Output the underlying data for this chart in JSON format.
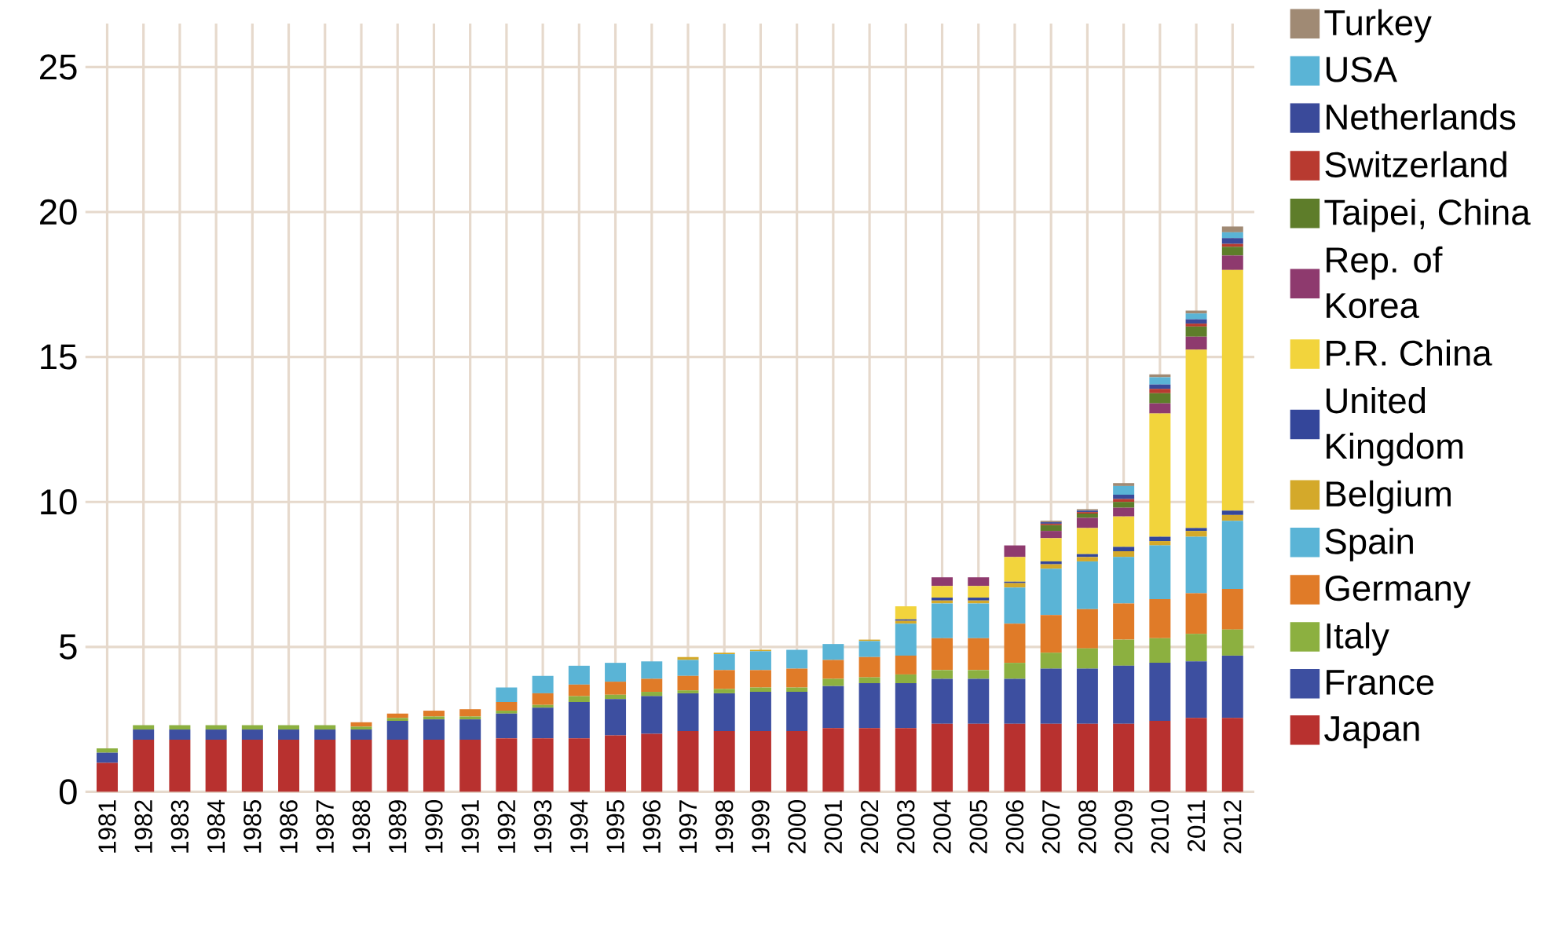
{
  "chart_data": {
    "type": "bar",
    "stacked": true,
    "categories": [
      "1981",
      "1982",
      "1983",
      "1984",
      "1985",
      "1986",
      "1987",
      "1988",
      "1989",
      "1990",
      "1991",
      "1992",
      "1993",
      "1994",
      "1995",
      "1996",
      "1997",
      "1998",
      "1999",
      "2000",
      "2001",
      "2002",
      "2003",
      "2004",
      "2005",
      "2006",
      "2007",
      "2008",
      "2009",
      "2010",
      "2011",
      "2012"
    ],
    "series": [
      {
        "name": "Japan",
        "color": "#b8312f",
        "values": [
          1.0,
          1.8,
          1.8,
          1.8,
          1.8,
          1.8,
          1.8,
          1.8,
          1.8,
          1.8,
          1.8,
          1.85,
          1.85,
          1.85,
          1.95,
          2.0,
          2.1,
          2.1,
          2.1,
          2.1,
          2.2,
          2.2,
          2.2,
          2.35,
          2.35,
          2.35,
          2.35,
          2.35,
          2.35,
          2.45,
          2.55,
          2.55
        ]
      },
      {
        "name": "France",
        "color": "#3d4fa0",
        "values": [
          0.35,
          0.35,
          0.35,
          0.35,
          0.35,
          0.35,
          0.35,
          0.35,
          0.65,
          0.7,
          0.7,
          0.85,
          1.05,
          1.25,
          1.25,
          1.3,
          1.3,
          1.3,
          1.35,
          1.35,
          1.45,
          1.55,
          1.55,
          1.55,
          1.55,
          1.55,
          1.9,
          1.9,
          2.0,
          2.0,
          1.95,
          2.15
        ]
      },
      {
        "name": "Italy",
        "color": "#8cb040",
        "values": [
          0.15,
          0.15,
          0.15,
          0.15,
          0.15,
          0.15,
          0.15,
          0.1,
          0.1,
          0.1,
          0.1,
          0.1,
          0.1,
          0.2,
          0.15,
          0.15,
          0.1,
          0.15,
          0.15,
          0.15,
          0.25,
          0.2,
          0.3,
          0.3,
          0.3,
          0.55,
          0.55,
          0.7,
          0.9,
          0.85,
          0.95,
          0.9
        ]
      },
      {
        "name": "Germany",
        "color": "#e07b28",
        "values": [
          0,
          0,
          0,
          0,
          0,
          0,
          0,
          0.15,
          0.15,
          0.2,
          0.25,
          0.3,
          0.4,
          0.4,
          0.45,
          0.45,
          0.5,
          0.65,
          0.6,
          0.65,
          0.65,
          0.7,
          0.65,
          1.1,
          1.1,
          1.35,
          1.3,
          1.35,
          1.25,
          1.35,
          1.4,
          1.4
        ]
      },
      {
        "name": "Spain",
        "color": "#5ab4d6",
        "values": [
          0,
          0,
          0,
          0,
          0,
          0,
          0,
          0,
          0,
          0,
          0,
          0.5,
          0.6,
          0.65,
          0.65,
          0.6,
          0.55,
          0.55,
          0.65,
          0.65,
          0.55,
          0.55,
          1.1,
          1.2,
          1.2,
          1.25,
          1.6,
          1.65,
          1.6,
          1.85,
          1.95,
          2.35
        ]
      },
      {
        "name": "Belgium",
        "color": "#d4a92a",
        "values": [
          0,
          0,
          0,
          0,
          0,
          0,
          0,
          0,
          0,
          0,
          0,
          0,
          0,
          0,
          0,
          0,
          0.1,
          0.05,
          0.05,
          0,
          0,
          0.05,
          0.1,
          0.1,
          0.1,
          0.15,
          0.15,
          0.15,
          0.2,
          0.15,
          0.2,
          0.2
        ]
      },
      {
        "name": "United Kingdom",
        "color": "#34469a",
        "values": [
          0,
          0,
          0,
          0,
          0,
          0,
          0,
          0,
          0,
          0,
          0,
          0,
          0,
          0,
          0,
          0,
          0,
          0,
          0,
          0,
          0,
          0,
          0.05,
          0.1,
          0.1,
          0.05,
          0.1,
          0.1,
          0.15,
          0.15,
          0.1,
          0.15
        ]
      },
      {
        "name": "P.R. China",
        "color": "#f2d43c",
        "values": [
          0,
          0,
          0,
          0,
          0,
          0,
          0,
          0,
          0,
          0,
          0,
          0,
          0,
          0,
          0,
          0,
          0,
          0,
          0,
          0,
          0,
          0,
          0.45,
          0.4,
          0.4,
          0.85,
          0.8,
          0.9,
          1.05,
          4.25,
          6.15,
          8.3
        ]
      },
      {
        "name": "Rep. of Korea",
        "color": "#8e3a6e",
        "values": [
          0,
          0,
          0,
          0,
          0,
          0,
          0,
          0,
          0,
          0,
          0,
          0,
          0,
          0,
          0,
          0,
          0,
          0,
          0,
          0,
          0,
          0,
          0,
          0.3,
          0.3,
          0.4,
          0.25,
          0.35,
          0.3,
          0.35,
          0.45,
          0.5
        ]
      },
      {
        "name": "Taipei, China",
        "color": "#5e7d2a",
        "values": [
          0,
          0,
          0,
          0,
          0,
          0,
          0,
          0,
          0,
          0,
          0,
          0,
          0,
          0,
          0,
          0,
          0,
          0,
          0,
          0,
          0,
          0,
          0,
          0,
          0,
          0,
          0.2,
          0.15,
          0.2,
          0.35,
          0.35,
          0.3
        ]
      },
      {
        "name": "Switzerland",
        "color": "#b83a30",
        "values": [
          0,
          0,
          0,
          0,
          0,
          0,
          0,
          0,
          0,
          0,
          0,
          0,
          0,
          0,
          0,
          0,
          0,
          0,
          0,
          0,
          0,
          0,
          0,
          0,
          0,
          0,
          0.05,
          0.05,
          0.1,
          0.15,
          0.1,
          0.1
        ]
      },
      {
        "name": "Netherlands",
        "color": "#3a4a9a",
        "values": [
          0,
          0,
          0,
          0,
          0,
          0,
          0,
          0,
          0,
          0,
          0,
          0,
          0,
          0,
          0,
          0,
          0,
          0,
          0,
          0,
          0,
          0,
          0,
          0,
          0,
          0,
          0.05,
          0.05,
          0.15,
          0.15,
          0.15,
          0.2
        ]
      },
      {
        "name": "USA",
        "color": "#5ab4d6",
        "values": [
          0,
          0,
          0,
          0,
          0,
          0,
          0,
          0,
          0,
          0,
          0,
          0,
          0,
          0,
          0,
          0,
          0,
          0,
          0,
          0,
          0,
          0,
          0,
          0,
          0,
          0,
          0,
          0,
          0.3,
          0.25,
          0.2,
          0.2
        ]
      },
      {
        "name": "Turkey",
        "color": "#a08a74",
        "values": [
          0,
          0,
          0,
          0,
          0,
          0,
          0,
          0,
          0,
          0,
          0,
          0,
          0,
          0,
          0,
          0,
          0,
          0,
          0,
          0,
          0,
          0,
          0,
          0,
          0,
          0,
          0.05,
          0.05,
          0.1,
          0.1,
          0.1,
          0.2
        ]
      }
    ],
    "ylim": [
      0,
      26.5
    ],
    "yticks": [
      0,
      5,
      10,
      15,
      20,
      25
    ],
    "grid": true,
    "legend": "right"
  }
}
